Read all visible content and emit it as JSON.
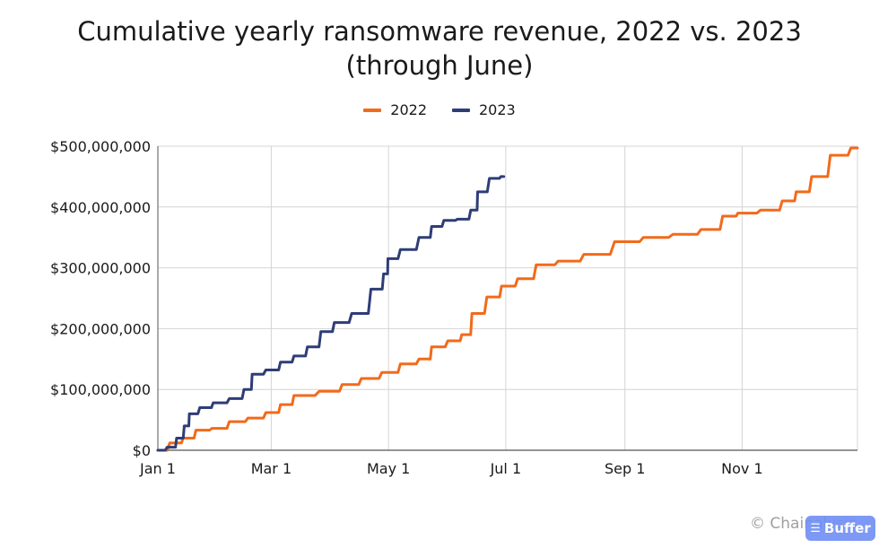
{
  "title": "Cumulative yearly ransomware revenue, 2022 vs. 2023 (through June)",
  "credit": "© Chainalysis",
  "badge": {
    "label": "Buffer",
    "icon": "stack-icon"
  },
  "chart_data": {
    "type": "line",
    "title": "Cumulative yearly ransomware revenue, 2022 vs. 2023 (through June)",
    "xlabel": "",
    "ylabel": "",
    "x_type": "date",
    "x_tick_labels": [
      "Jan 1",
      "Mar 1",
      "May 1",
      "Jul 1",
      "Sep 1",
      "Nov 1"
    ],
    "y_tick_labels": [
      "$0",
      "$100,000,000",
      "$200,000,000",
      "$300,000,000",
      "$400,000,000",
      "$500,000,000"
    ],
    "ylim": [
      0,
      500000000
    ],
    "grid": true,
    "legend_position": "top-center",
    "series": [
      {
        "name": "2022",
        "color": "#f26a1b",
        "points": [
          [
            "Jan 1",
            0
          ],
          [
            "Jan 10",
            12000000
          ],
          [
            "Jan 16",
            20000000
          ],
          [
            "Jan 23",
            33000000
          ],
          [
            "Feb 1",
            36000000
          ],
          [
            "Feb 10",
            47000000
          ],
          [
            "Feb 20",
            53000000
          ],
          [
            "Mar 1",
            62000000
          ],
          [
            "Mar 8",
            75000000
          ],
          [
            "Mar 15",
            90000000
          ],
          [
            "Mar 31",
            97000000
          ],
          [
            "Apr 10",
            108000000
          ],
          [
            "Apr 20",
            118000000
          ],
          [
            "May 1",
            128000000
          ],
          [
            "May 10",
            142000000
          ],
          [
            "May 20",
            150000000
          ],
          [
            "May 25",
            170000000
          ],
          [
            "Jun 4",
            180000000
          ],
          [
            "Jun 10",
            190000000
          ],
          [
            "Jun 15",
            225000000
          ],
          [
            "Jun 24",
            252000000
          ],
          [
            "Jul 1",
            270000000
          ],
          [
            "Jul 10",
            282000000
          ],
          [
            "Jul 20",
            305000000
          ],
          [
            "Aug 1",
            311000000
          ],
          [
            "Aug 15",
            322000000
          ],
          [
            "Sep 1",
            343000000
          ],
          [
            "Sep 15",
            350000000
          ],
          [
            "Oct 1",
            355000000
          ],
          [
            "Oct 15",
            363000000
          ],
          [
            "Oct 25",
            385000000
          ],
          [
            "Nov 1",
            390000000
          ],
          [
            "Nov 15",
            395000000
          ],
          [
            "Nov 25",
            410000000
          ],
          [
            "Dec 1",
            425000000
          ],
          [
            "Dec 10",
            450000000
          ],
          [
            "Dec 20",
            485000000
          ],
          [
            "Dec 31",
            497000000
          ]
        ]
      },
      {
        "name": "2023",
        "color": "#2e3d77",
        "points": [
          [
            "Jan 1",
            0
          ],
          [
            "Jan 8",
            5000000
          ],
          [
            "Jan 12",
            20000000
          ],
          [
            "Jan 16",
            40000000
          ],
          [
            "Jan 18",
            60000000
          ],
          [
            "Jan 25",
            70000000
          ],
          [
            "Feb 1",
            78000000
          ],
          [
            "Feb 10",
            85000000
          ],
          [
            "Feb 17",
            100000000
          ],
          [
            "Feb 20",
            125000000
          ],
          [
            "Mar 1",
            132000000
          ],
          [
            "Mar 8",
            145000000
          ],
          [
            "Mar 15",
            155000000
          ],
          [
            "Mar 22",
            170000000
          ],
          [
            "Mar 29",
            195000000
          ],
          [
            "Apr 5",
            210000000
          ],
          [
            "Apr 15",
            225000000
          ],
          [
            "Apr 25",
            265000000
          ],
          [
            "Apr 30",
            290000000
          ],
          [
            "May 1",
            315000000
          ],
          [
            "May 10",
            330000000
          ],
          [
            "May 20",
            350000000
          ],
          [
            "May 25",
            368000000
          ],
          [
            "Jun 1",
            378000000
          ],
          [
            "Jun 8",
            380000000
          ],
          [
            "Jun 15",
            395000000
          ],
          [
            "Jun 17",
            425000000
          ],
          [
            "Jun 25",
            447000000
          ],
          [
            "Jun 30",
            450000000
          ]
        ]
      }
    ]
  }
}
